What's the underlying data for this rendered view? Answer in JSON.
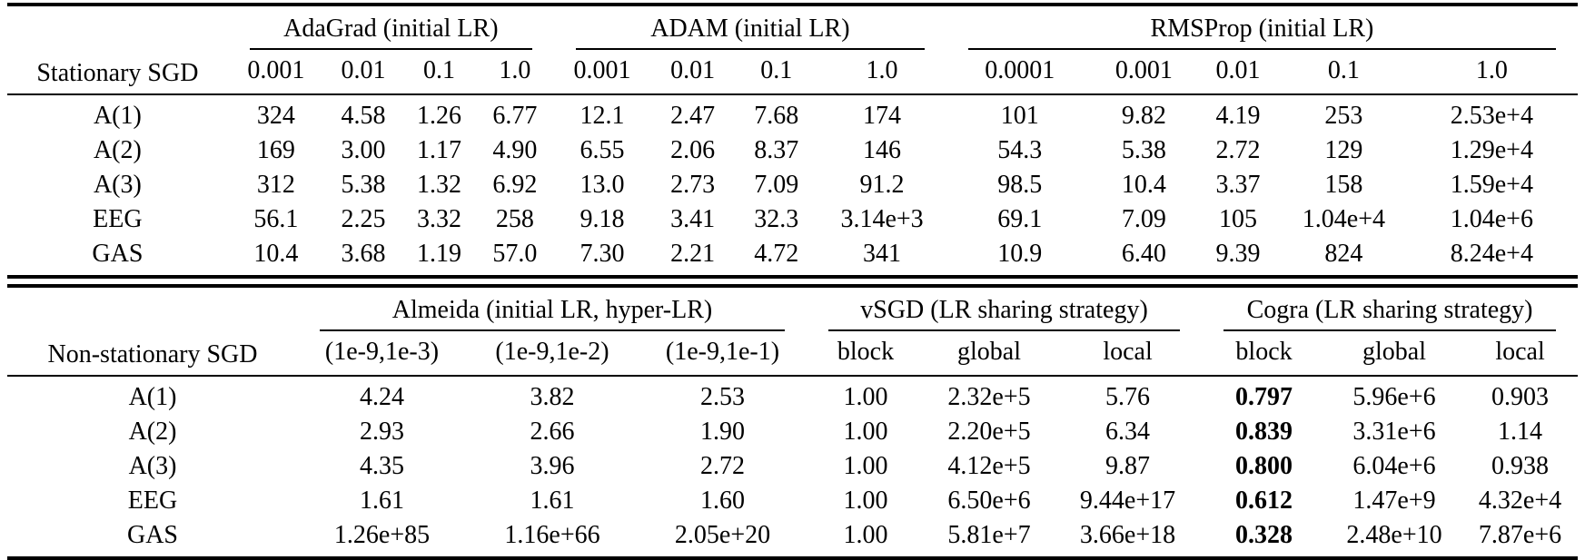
{
  "table1": {
    "row_header": "Stationary SGD",
    "groups": [
      {
        "label": "AdaGrad (initial LR)",
        "cols": [
          "0.001",
          "0.01",
          "0.1",
          "1.0"
        ]
      },
      {
        "label": "ADAM (initial LR)",
        "cols": [
          "0.001",
          "0.01",
          "0.1",
          "1.0"
        ]
      },
      {
        "label": "RMSProp (initial LR)",
        "cols": [
          "0.0001",
          "0.001",
          "0.01",
          "0.1",
          "1.0"
        ]
      }
    ],
    "bold_cols": [],
    "rows": [
      {
        "label": "A(1)",
        "values": [
          "324",
          "4.58",
          "1.26",
          "6.77",
          "12.1",
          "2.47",
          "7.68",
          "174",
          "101",
          "9.82",
          "4.19",
          "253",
          "2.53e+4"
        ]
      },
      {
        "label": "A(2)",
        "values": [
          "169",
          "3.00",
          "1.17",
          "4.90",
          "6.55",
          "2.06",
          "8.37",
          "146",
          "54.3",
          "5.38",
          "2.72",
          "129",
          "1.29e+4"
        ]
      },
      {
        "label": "A(3)",
        "values": [
          "312",
          "5.38",
          "1.32",
          "6.92",
          "13.0",
          "2.73",
          "7.09",
          "91.2",
          "98.5",
          "10.4",
          "3.37",
          "158",
          "1.59e+4"
        ]
      },
      {
        "label": "EEG",
        "values": [
          "56.1",
          "2.25",
          "3.32",
          "258",
          "9.18",
          "3.41",
          "32.3",
          "3.14e+3",
          "69.1",
          "7.09",
          "105",
          "1.04e+4",
          "1.04e+6"
        ]
      },
      {
        "label": "GAS",
        "values": [
          "10.4",
          "3.68",
          "1.19",
          "57.0",
          "7.30",
          "2.21",
          "4.72",
          "341",
          "10.9",
          "6.40",
          "9.39",
          "824",
          "8.24e+4"
        ]
      }
    ]
  },
  "table2": {
    "row_header": "Non-stationary SGD",
    "groups": [
      {
        "label": "Almeida (initial LR, hyper-LR)",
        "cols": [
          "(1e-9,1e-3)",
          "(1e-9,1e-2)",
          "(1e-9,1e-1)"
        ]
      },
      {
        "label": "vSGD (LR sharing strategy)",
        "cols": [
          "block",
          "global",
          "local"
        ]
      },
      {
        "label": "Cogra (LR sharing strategy)",
        "cols": [
          "block",
          "global",
          "local"
        ]
      }
    ],
    "bold_cols": [
      6
    ],
    "rows": [
      {
        "label": "A(1)",
        "values": [
          "4.24",
          "3.82",
          "2.53",
          "1.00",
          "2.32e+5",
          "5.76",
          "0.797",
          "5.96e+6",
          "0.903"
        ]
      },
      {
        "label": "A(2)",
        "values": [
          "2.93",
          "2.66",
          "1.90",
          "1.00",
          "2.20e+5",
          "6.34",
          "0.839",
          "3.31e+6",
          "1.14"
        ]
      },
      {
        "label": "A(3)",
        "values": [
          "4.35",
          "3.96",
          "2.72",
          "1.00",
          "4.12e+5",
          "9.87",
          "0.800",
          "6.04e+6",
          "0.938"
        ]
      },
      {
        "label": "EEG",
        "values": [
          "1.61",
          "1.61",
          "1.60",
          "1.00",
          "6.50e+6",
          "9.44e+17",
          "0.612",
          "1.47e+9",
          "4.32e+4"
        ]
      },
      {
        "label": "GAS",
        "values": [
          "1.26e+85",
          "1.16e+66",
          "2.05e+20",
          "1.00",
          "5.81e+7",
          "3.66e+18",
          "0.328",
          "2.48e+10",
          "7.87e+6"
        ]
      }
    ]
  }
}
